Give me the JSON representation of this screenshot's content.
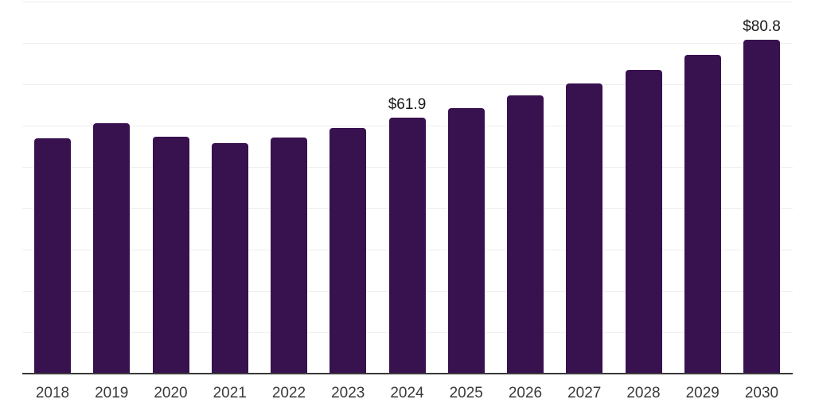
{
  "chart_data": {
    "type": "bar",
    "categories": [
      "2018",
      "2019",
      "2020",
      "2021",
      "2022",
      "2023",
      "2024",
      "2025",
      "2026",
      "2027",
      "2028",
      "2029",
      "2030"
    ],
    "values": [
      57.0,
      60.6,
      57.4,
      55.8,
      57.2,
      59.5,
      61.9,
      64.3,
      67.3,
      70.2,
      73.4,
      77.1,
      80.8
    ],
    "data_labels": [
      "",
      "",
      "",
      "",
      "",
      "",
      "$61.9",
      "",
      "",
      "",
      "",
      "",
      "$80.8"
    ],
    "unit_prefix": "$",
    "ylim": [
      0,
      90
    ],
    "grid_step": 10,
    "grid": "horizontal",
    "legend_position": "none",
    "colors": {
      "bar": "#38114f",
      "grid": "#efefef",
      "axis": "#3a3a3a",
      "tick_text": "#3a3a3a",
      "label_text": "#191919",
      "background": "#ffffff"
    }
  }
}
